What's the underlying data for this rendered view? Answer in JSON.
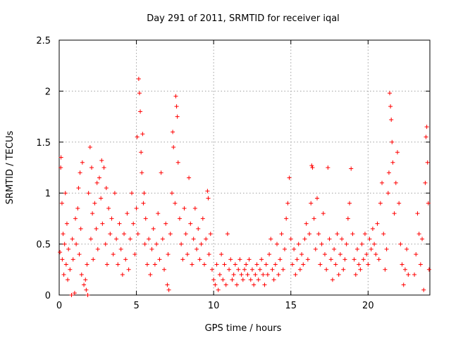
{
  "chart_data": {
    "type": "scatter",
    "title": "Day 291 of 2011, SRMTID for receiver iqal",
    "xlabel": "GPS time / hours",
    "ylabel": "SRMTID / TECUs",
    "xlim": [
      0,
      24
    ],
    "ylim": [
      0,
      2.5
    ],
    "xticks": [
      0,
      5,
      10,
      15,
      20
    ],
    "xtick_labels": [
      "0",
      "5",
      "10",
      "15",
      "20"
    ],
    "yticks": [
      0,
      0.5,
      1,
      1.5,
      2,
      2.5
    ],
    "ytick_labels": [
      "0",
      "0.5",
      "1",
      "1.5",
      "2",
      "2.5"
    ],
    "grid": true,
    "marker": "+",
    "color": "#ff0000",
    "series": [
      {
        "name": "SRMTID",
        "points": [
          [
            0.05,
            0.42
          ],
          [
            0.1,
            1.25
          ],
          [
            0.12,
            1.35
          ],
          [
            0.18,
            0.9
          ],
          [
            0.2,
            0.35
          ],
          [
            0.25,
            0.6
          ],
          [
            0.3,
            0.2
          ],
          [
            0.35,
            0.5
          ],
          [
            0.4,
            1.0
          ],
          [
            0.45,
            0.3
          ],
          [
            0.5,
            0.7
          ],
          [
            0.55,
            0.15
          ],
          [
            0.6,
            0.45
          ],
          [
            0.7,
            0.25
          ],
          [
            0.8,
            0.0
          ],
          [
            0.85,
            0.55
          ],
          [
            0.9,
            0.35
          ],
          [
            1.0,
            0.02
          ],
          [
            1.05,
            0.75
          ],
          [
            1.1,
            0.5
          ],
          [
            1.2,
            0.85
          ],
          [
            1.25,
            1.05
          ],
          [
            1.3,
            0.4
          ],
          [
            1.35,
            1.2
          ],
          [
            1.4,
            0.65
          ],
          [
            1.45,
            0.2
          ],
          [
            1.5,
            1.3
          ],
          [
            1.6,
            0.1
          ],
          [
            1.7,
            0.15
          ],
          [
            1.75,
            0.05
          ],
          [
            1.8,
            0.3
          ],
          [
            1.85,
            0.0
          ],
          [
            1.9,
            1.0
          ],
          [
            2.0,
            1.45
          ],
          [
            2.05,
            0.55
          ],
          [
            2.1,
            1.25
          ],
          [
            2.15,
            0.8
          ],
          [
            2.2,
            0.35
          ],
          [
            2.3,
            0.9
          ],
          [
            2.4,
            0.65
          ],
          [
            2.45,
            1.1
          ],
          [
            2.5,
            0.45
          ],
          [
            2.6,
            1.15
          ],
          [
            2.7,
            0.95
          ],
          [
            2.75,
            1.32
          ],
          [
            2.8,
            0.7
          ],
          [
            2.9,
            1.25
          ],
          [
            3.0,
            0.5
          ],
          [
            3.05,
            1.05
          ],
          [
            3.1,
            0.3
          ],
          [
            3.2,
            0.85
          ],
          [
            3.3,
            0.6
          ],
          [
            3.4,
            0.75
          ],
          [
            3.5,
            0.4
          ],
          [
            3.6,
            1.0
          ],
          [
            3.7,
            0.55
          ],
          [
            3.8,
            0.3
          ],
          [
            3.9,
            0.7
          ],
          [
            4.0,
            0.45
          ],
          [
            4.1,
            0.2
          ],
          [
            4.2,
            0.6
          ],
          [
            4.3,
            0.35
          ],
          [
            4.4,
            0.8
          ],
          [
            4.5,
            0.25
          ],
          [
            4.6,
            0.55
          ],
          [
            4.7,
            1.0
          ],
          [
            4.8,
            0.7
          ],
          [
            4.9,
            0.4
          ],
          [
            5.0,
            0.85
          ],
          [
            5.05,
            1.55
          ],
          [
            5.1,
            0.6
          ],
          [
            5.15,
            2.12
          ],
          [
            5.2,
            1.98
          ],
          [
            5.25,
            1.8
          ],
          [
            5.3,
            1.4
          ],
          [
            5.35,
            1.2
          ],
          [
            5.4,
            1.58
          ],
          [
            5.45,
            0.9
          ],
          [
            5.5,
            1.0
          ],
          [
            5.55,
            0.5
          ],
          [
            5.6,
            0.75
          ],
          [
            5.7,
            0.3
          ],
          [
            5.8,
            0.55
          ],
          [
            5.9,
            0.2
          ],
          [
            6.0,
            0.45
          ],
          [
            6.1,
            0.65
          ],
          [
            6.2,
            0.3
          ],
          [
            6.3,
            0.5
          ],
          [
            6.4,
            0.8
          ],
          [
            6.5,
            0.35
          ],
          [
            6.6,
            1.2
          ],
          [
            6.7,
            0.55
          ],
          [
            6.8,
            0.25
          ],
          [
            6.9,
            0.7
          ],
          [
            7.0,
            0.1
          ],
          [
            7.05,
            0.4
          ],
          [
            7.1,
            0.05
          ],
          [
            7.2,
            0.6
          ],
          [
            7.3,
            1.0
          ],
          [
            7.35,
            1.6
          ],
          [
            7.4,
            1.45
          ],
          [
            7.5,
            0.9
          ],
          [
            7.55,
            1.95
          ],
          [
            7.6,
            1.85
          ],
          [
            7.65,
            1.75
          ],
          [
            7.7,
            1.3
          ],
          [
            7.8,
            0.75
          ],
          [
            7.9,
            0.5
          ],
          [
            8.0,
            0.35
          ],
          [
            8.1,
            0.85
          ],
          [
            8.2,
            0.6
          ],
          [
            8.3,
            0.4
          ],
          [
            8.4,
            1.15
          ],
          [
            8.5,
            0.7
          ],
          [
            8.6,
            0.3
          ],
          [
            8.7,
            0.55
          ],
          [
            8.8,
            0.85
          ],
          [
            8.9,
            0.45
          ],
          [
            9.0,
            0.65
          ],
          [
            9.1,
            0.35
          ],
          [
            9.2,
            0.5
          ],
          [
            9.3,
            0.75
          ],
          [
            9.4,
            0.3
          ],
          [
            9.5,
            0.55
          ],
          [
            9.6,
            1.02
          ],
          [
            9.65,
            0.95
          ],
          [
            9.7,
            0.4
          ],
          [
            9.8,
            0.6
          ],
          [
            9.9,
            0.25
          ],
          [
            10.0,
            0.15
          ],
          [
            10.1,
            0.1
          ],
          [
            10.2,
            0.3
          ],
          [
            10.3,
            0.05
          ],
          [
            10.4,
            0.2
          ],
          [
            10.5,
            0.4
          ],
          [
            10.6,
            0.15
          ],
          [
            10.7,
            0.3
          ],
          [
            10.8,
            0.1
          ],
          [
            10.9,
            0.6
          ],
          [
            11.0,
            0.25
          ],
          [
            11.1,
            0.35
          ],
          [
            11.2,
            0.15
          ],
          [
            11.3,
            0.2
          ],
          [
            11.4,
            0.3
          ],
          [
            11.5,
            0.1
          ],
          [
            11.6,
            0.25
          ],
          [
            11.7,
            0.35
          ],
          [
            11.8,
            0.2
          ],
          [
            11.9,
            0.15
          ],
          [
            12.0,
            0.25
          ],
          [
            12.1,
            0.3
          ],
          [
            12.2,
            0.2
          ],
          [
            12.3,
            0.35
          ],
          [
            12.4,
            0.15
          ],
          [
            12.5,
            0.25
          ],
          [
            12.6,
            0.1
          ],
          [
            12.7,
            0.2
          ],
          [
            12.8,
            0.3
          ],
          [
            12.9,
            0.15
          ],
          [
            13.0,
            0.25
          ],
          [
            13.1,
            0.35
          ],
          [
            13.2,
            0.2
          ],
          [
            13.3,
            0.1
          ],
          [
            13.4,
            0.3
          ],
          [
            13.5,
            0.2
          ],
          [
            13.6,
            0.4
          ],
          [
            13.7,
            0.55
          ],
          [
            13.8,
            0.25
          ],
          [
            13.9,
            0.15
          ],
          [
            14.0,
            0.3
          ],
          [
            14.1,
            0.5
          ],
          [
            14.2,
            0.2
          ],
          [
            14.3,
            0.35
          ],
          [
            14.4,
            0.6
          ],
          [
            14.5,
            0.25
          ],
          [
            14.6,
            0.45
          ],
          [
            14.7,
            0.75
          ],
          [
            14.8,
            0.9
          ],
          [
            14.9,
            1.15
          ],
          [
            15.0,
            0.55
          ],
          [
            15.1,
            0.3
          ],
          [
            15.2,
            0.45
          ],
          [
            15.3,
            0.2
          ],
          [
            15.4,
            0.35
          ],
          [
            15.5,
            0.5
          ],
          [
            15.6,
            0.25
          ],
          [
            15.7,
            0.4
          ],
          [
            15.8,
            0.3
          ],
          [
            15.9,
            0.55
          ],
          [
            16.0,
            0.7
          ],
          [
            16.1,
            0.35
          ],
          [
            16.2,
            0.6
          ],
          [
            16.3,
            0.9
          ],
          [
            16.35,
            1.27
          ],
          [
            16.4,
            1.25
          ],
          [
            16.5,
            0.75
          ],
          [
            16.6,
            0.45
          ],
          [
            16.7,
            0.95
          ],
          [
            16.8,
            0.6
          ],
          [
            16.9,
            0.3
          ],
          [
            17.0,
            0.5
          ],
          [
            17.1,
            0.8
          ],
          [
            17.2,
            0.4
          ],
          [
            17.3,
            0.25
          ],
          [
            17.4,
            1.25
          ],
          [
            17.5,
            0.55
          ],
          [
            17.6,
            0.35
          ],
          [
            17.7,
            0.15
          ],
          [
            17.8,
            0.45
          ],
          [
            17.9,
            0.3
          ],
          [
            18.0,
            0.6
          ],
          [
            18.1,
            0.2
          ],
          [
            18.2,
            0.4
          ],
          [
            18.3,
            0.55
          ],
          [
            18.4,
            0.25
          ],
          [
            18.5,
            0.35
          ],
          [
            18.6,
            0.5
          ],
          [
            18.7,
            0.75
          ],
          [
            18.8,
            0.9
          ],
          [
            18.9,
            1.24
          ],
          [
            19.0,
            0.6
          ],
          [
            19.1,
            0.35
          ],
          [
            19.2,
            0.2
          ],
          [
            19.3,
            0.45
          ],
          [
            19.4,
            0.3
          ],
          [
            19.5,
            0.25
          ],
          [
            19.6,
            0.5
          ],
          [
            19.7,
            0.35
          ],
          [
            19.8,
            0.6
          ],
          [
            19.9,
            0.4
          ],
          [
            20.0,
            0.3
          ],
          [
            20.1,
            0.55
          ],
          [
            20.2,
            0.45
          ],
          [
            20.3,
            0.65
          ],
          [
            20.4,
            0.5
          ],
          [
            20.5,
            0.4
          ],
          [
            20.6,
            0.7
          ],
          [
            20.7,
            0.35
          ],
          [
            20.8,
            0.9
          ],
          [
            20.9,
            1.1
          ],
          [
            21.0,
            0.6
          ],
          [
            21.1,
            0.25
          ],
          [
            21.2,
            0.45
          ],
          [
            21.3,
            1.0
          ],
          [
            21.35,
            1.2
          ],
          [
            21.4,
            1.98
          ],
          [
            21.45,
            1.85
          ],
          [
            21.5,
            1.72
          ],
          [
            21.55,
            1.5
          ],
          [
            21.6,
            1.3
          ],
          [
            21.7,
            0.8
          ],
          [
            21.8,
            1.1
          ],
          [
            21.9,
            1.4
          ],
          [
            22.0,
            0.9
          ],
          [
            22.1,
            0.5
          ],
          [
            22.2,
            0.3
          ],
          [
            22.3,
            0.1
          ],
          [
            22.4,
            0.25
          ],
          [
            22.5,
            0.45
          ],
          [
            22.6,
            0.2
          ],
          [
            23.0,
            0.2
          ],
          [
            23.1,
            0.4
          ],
          [
            23.2,
            0.8
          ],
          [
            23.3,
            0.6
          ],
          [
            23.4,
            0.3
          ],
          [
            23.5,
            0.55
          ],
          [
            23.6,
            0.05
          ],
          [
            23.7,
            1.1
          ],
          [
            23.75,
            1.55
          ],
          [
            23.8,
            1.65
          ],
          [
            23.85,
            1.3
          ],
          [
            23.9,
            0.9
          ],
          [
            23.95,
            0.25
          ]
        ]
      }
    ]
  }
}
